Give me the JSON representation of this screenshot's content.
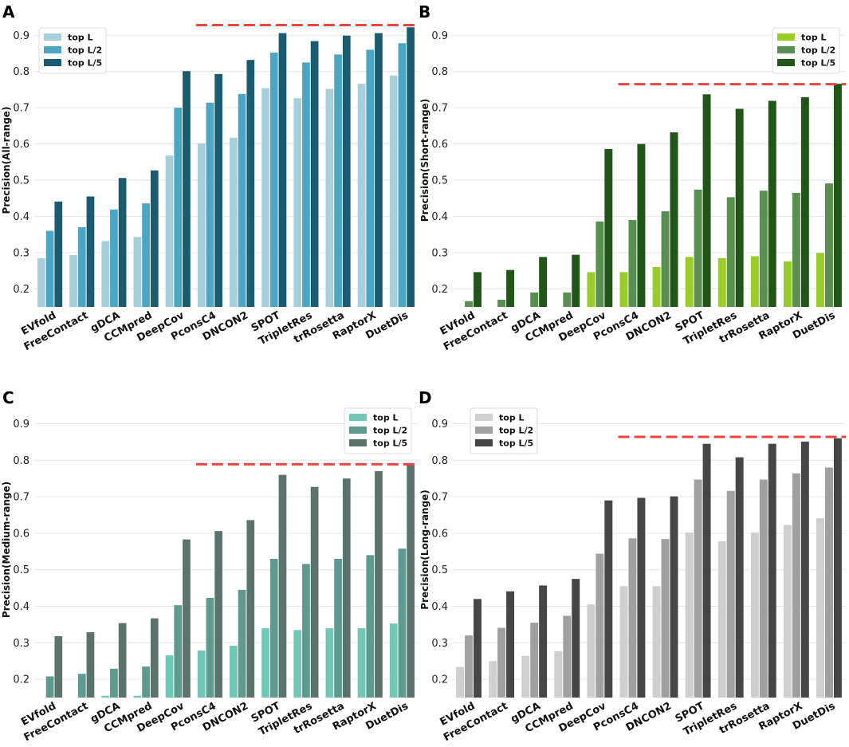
{
  "chart_data": [
    {
      "panel": "A",
      "type": "bar",
      "ylabel": "Precision(All-range)",
      "categories": [
        "EVfold",
        "FreeContact",
        "gDCA",
        "CCMpred",
        "DeepCov",
        "PconsC4",
        "DNCON2",
        "SPOT",
        "TripletRes",
        "trRosetta",
        "RaptorX",
        "DuetDis"
      ],
      "series": [
        {
          "name": "top L",
          "color": "#a8d0dc",
          "values": [
            0.284,
            0.293,
            0.332,
            0.343,
            0.568,
            0.602,
            0.617,
            0.754,
            0.726,
            0.752,
            0.766,
            0.789
          ]
        },
        {
          "name": "top L/2",
          "color": "#4ba6c4",
          "values": [
            0.36,
            0.37,
            0.419,
            0.436,
            0.7,
            0.714,
            0.738,
            0.852,
            0.825,
            0.847,
            0.86,
            0.878
          ]
        },
        {
          "name": "top L/5",
          "color": "#1b5b6f",
          "values": [
            0.441,
            0.455,
            0.506,
            0.527,
            0.801,
            0.793,
            0.832,
            0.906,
            0.884,
            0.899,
            0.906,
            0.922
          ]
        }
      ],
      "ylim": [
        0.15,
        0.96
      ],
      "yticks": [
        "0.2",
        "0.3",
        "0.4",
        "0.5",
        "0.6",
        "0.7",
        "0.8",
        "0.9"
      ],
      "reference_line": {
        "value": 0.928,
        "color": "#e8453c",
        "from_category": "PconsC4"
      },
      "legend": "top-left"
    },
    {
      "panel": "B",
      "type": "bar",
      "ylabel": "Precision(Short-range)",
      "categories": [
        "EVfold",
        "FreeContact",
        "gDCA",
        "CCMpred",
        "DeepCov",
        "PconsC4",
        "DNCON2",
        "SPOT",
        "TripletRes",
        "trRosetta",
        "RaptorX",
        "DuetDis"
      ],
      "series": [
        {
          "name": "top L",
          "color": "#9acd28",
          "values": [
            0.12,
            0.12,
            0.12,
            0.12,
            0.246,
            0.246,
            0.26,
            0.288,
            0.285,
            0.29,
            0.276,
            0.299
          ]
        },
        {
          "name": "top L/2",
          "color": "#5a8f52",
          "values": [
            0.166,
            0.17,
            0.19,
            0.19,
            0.386,
            0.39,
            0.414,
            0.474,
            0.453,
            0.471,
            0.465,
            0.491
          ]
        },
        {
          "name": "top L/5",
          "color": "#225518",
          "values": [
            0.246,
            0.252,
            0.288,
            0.294,
            0.586,
            0.6,
            0.632,
            0.737,
            0.697,
            0.719,
            0.729,
            0.766
          ]
        }
      ],
      "ylim": [
        0.15,
        0.96
      ],
      "yticks": [
        "0.2",
        "0.3",
        "0.4",
        "0.5",
        "0.6",
        "0.7",
        "0.8",
        "0.9"
      ],
      "reference_line": {
        "value": 0.765,
        "color": "#e8453c",
        "from_category": "PconsC4"
      },
      "legend": "top-right"
    },
    {
      "panel": "C",
      "type": "bar",
      "ylabel": "Precision(Medium-range)",
      "categories": [
        "EVfold",
        "FreeContact",
        "gDCA",
        "CCMpred",
        "DeepCov",
        "PconsC4",
        "DNCON2",
        "SPOT",
        "TripletRes",
        "trRosetta",
        "RaptorX",
        "DuetDis"
      ],
      "series": [
        {
          "name": "top L",
          "color": "#6fc9b6",
          "values": [
            0.12,
            0.12,
            0.155,
            0.155,
            0.266,
            0.279,
            0.292,
            0.34,
            0.335,
            0.34,
            0.34,
            0.353
          ]
        },
        {
          "name": "top L/2",
          "color": "#5e9a8e",
          "values": [
            0.208,
            0.215,
            0.229,
            0.235,
            0.403,
            0.423,
            0.445,
            0.53,
            0.516,
            0.53,
            0.54,
            0.558
          ]
        },
        {
          "name": "top L/5",
          "color": "#5c726c",
          "values": [
            0.318,
            0.329,
            0.354,
            0.367,
            0.583,
            0.606,
            0.636,
            0.76,
            0.727,
            0.75,
            0.77,
            0.787
          ]
        }
      ],
      "ylim": [
        0.15,
        0.96
      ],
      "yticks": [
        "0.2",
        "0.3",
        "0.4",
        "0.5",
        "0.6",
        "0.7",
        "0.8",
        "0.9"
      ],
      "reference_line": {
        "value": 0.789,
        "color": "#e8453c",
        "from_category": "PconsC4"
      },
      "legend": "top-right"
    },
    {
      "panel": "D",
      "type": "bar",
      "ylabel": "Precision(Long-range)",
      "categories": [
        "EVfold",
        "FreeContact",
        "gDCA",
        "CCMpred",
        "DeepCov",
        "PconsC4",
        "DNCON2",
        "SPOT",
        "TripletRes",
        "trRosetta",
        "RaptorX",
        "DuetDis"
      ],
      "series": [
        {
          "name": "top L",
          "color": "#cfcfcf",
          "values": [
            0.234,
            0.25,
            0.264,
            0.277,
            0.405,
            0.455,
            0.455,
            0.602,
            0.578,
            0.602,
            0.623,
            0.641
          ]
        },
        {
          "name": "top L/2",
          "color": "#a0a0a0",
          "values": [
            0.32,
            0.341,
            0.355,
            0.374,
            0.544,
            0.586,
            0.584,
            0.747,
            0.716,
            0.747,
            0.764,
            0.78
          ]
        },
        {
          "name": "top L/5",
          "color": "#464646",
          "values": [
            0.42,
            0.441,
            0.457,
            0.475,
            0.69,
            0.697,
            0.701,
            0.845,
            0.808,
            0.845,
            0.851,
            0.86
          ]
        }
      ],
      "ylim": [
        0.15,
        0.96
      ],
      "yticks": [
        "0.2",
        "0.3",
        "0.4",
        "0.5",
        "0.6",
        "0.7",
        "0.8",
        "0.9"
      ],
      "reference_line": {
        "value": 0.864,
        "color": "#e8453c",
        "from_category": "PconsC4"
      },
      "legend": "top-left"
    }
  ]
}
